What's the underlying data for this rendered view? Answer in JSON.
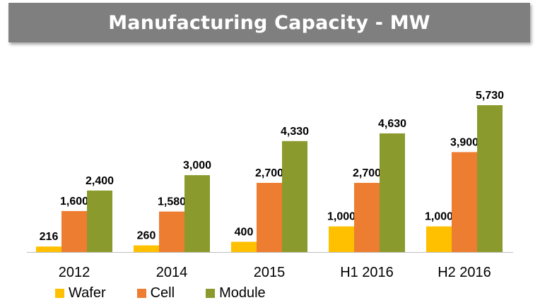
{
  "chart_data": {
    "type": "bar",
    "title": "Manufacturing Capacity - MW",
    "categories": [
      "2012",
      "2014",
      "2015",
      "H1 2016",
      "H2 2016"
    ],
    "series": [
      {
        "name": "Wafer",
        "color": "#ffc000",
        "values": [
          216,
          260,
          400,
          1000,
          1000
        ],
        "labels": [
          "216",
          "260",
          "400",
          "1,000",
          "1,000"
        ]
      },
      {
        "name": "Cell",
        "color": "#ed7d31",
        "values": [
          1600,
          1580,
          2700,
          2700,
          3900
        ],
        "labels": [
          "1,600",
          "1,580",
          "2,700",
          "2,700",
          "3,900"
        ]
      },
      {
        "name": "Module",
        "color": "#8a9a2c",
        "values": [
          2400,
          3000,
          4330,
          4630,
          5730
        ],
        "labels": [
          "2,400",
          "3,000",
          "4,330",
          "4,630",
          "5,730"
        ]
      }
    ],
    "ylim": [
      0,
      5730
    ],
    "legend_position": "bottom-left",
    "grid": false
  }
}
